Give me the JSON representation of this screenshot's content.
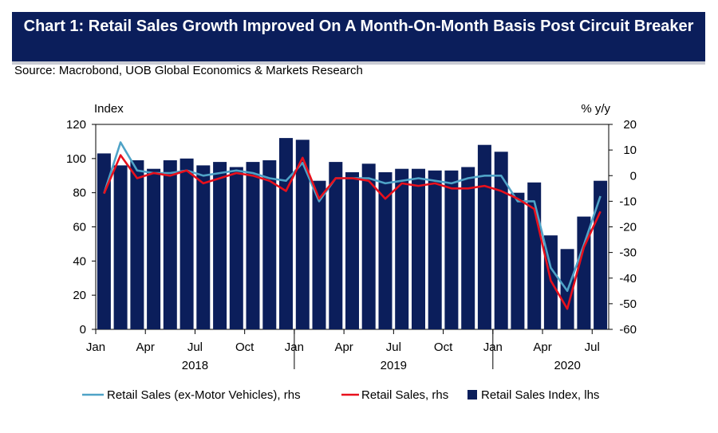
{
  "header": {
    "title": "Chart 1: Retail Sales Growth Improved On A Month-On-Month Basis Post Circuit Breaker",
    "source": "Source: Macrobond, UOB Global Economics & Markets Research"
  },
  "colors": {
    "bar": "#0b1e5b",
    "ex_motor_line": "#4fa3c7",
    "retail_line": "#e8101c",
    "title_bg": "#0b1e5b"
  },
  "chart_data": {
    "type": "bar+line",
    "title": "Chart 1: Retail Sales Growth Improved On A Month-On-Month Basis Post Circuit Breaker",
    "left_axis_label": "Index",
    "right_axis_label": "% y/y",
    "left_ylim": [
      0,
      120
    ],
    "right_ylim": [
      -60,
      20
    ],
    "left_ticks": [
      "0",
      "20",
      "40",
      "60",
      "80",
      "100",
      "120"
    ],
    "right_ticks": [
      "-60",
      "-50",
      "-40",
      "-30",
      "-20",
      "-10",
      "0",
      "10",
      "20"
    ],
    "x_month_labels": [
      {
        "index": 0,
        "label": "Jan"
      },
      {
        "index": 3,
        "label": "Apr"
      },
      {
        "index": 6,
        "label": "Jul"
      },
      {
        "index": 9,
        "label": "Oct"
      },
      {
        "index": 12,
        "label": "Jan"
      },
      {
        "index": 15,
        "label": "Apr"
      },
      {
        "index": 18,
        "label": "Jul"
      },
      {
        "index": 21,
        "label": "Oct"
      },
      {
        "index": 24,
        "label": "Jan"
      },
      {
        "index": 27,
        "label": "Apr"
      },
      {
        "index": 30,
        "label": "Jul"
      }
    ],
    "x_year_labels": [
      {
        "center_index": 5.5,
        "label": "2018"
      },
      {
        "center_index": 17.5,
        "label": "2019"
      },
      {
        "center_index": 28,
        "label": "2020"
      }
    ],
    "categories": [
      "2018-01",
      "2018-02",
      "2018-03",
      "2018-04",
      "2018-05",
      "2018-06",
      "2018-07",
      "2018-08",
      "2018-09",
      "2018-10",
      "2018-11",
      "2018-12",
      "2019-01",
      "2019-02",
      "2019-03",
      "2019-04",
      "2019-05",
      "2019-06",
      "2019-07",
      "2019-08",
      "2019-09",
      "2019-10",
      "2019-11",
      "2019-12",
      "2020-01",
      "2020-02",
      "2020-03",
      "2020-04",
      "2020-05",
      "2020-06",
      "2020-07"
    ],
    "series": [
      {
        "name": "Retail Sales Index, lhs",
        "axis": "left",
        "kind": "bar",
        "values": [
          103,
          96,
          99,
          94,
          99,
          100,
          96,
          98,
          95,
          98,
          99,
          112,
          111,
          87,
          98,
          92,
          97,
          92,
          94,
          94,
          93,
          93,
          95,
          108,
          104,
          80,
          86,
          55,
          47,
          66,
          87
        ]
      },
      {
        "name": "Retail Sales (ex-Motor Vehicles), rhs",
        "axis": "right",
        "kind": "line",
        "values": [
          -7,
          13,
          2,
          1,
          1,
          2,
          0,
          1,
          2,
          1,
          -1,
          -2,
          5,
          -10,
          -1,
          -1,
          -1,
          -3,
          -2,
          -1,
          -2,
          -3,
          -1,
          0,
          0,
          -10,
          -10,
          -36,
          -45,
          -27,
          -8
        ]
      },
      {
        "name": "Retail Sales, rhs",
        "axis": "right",
        "kind": "line",
        "values": [
          -7,
          8,
          -1,
          1,
          0,
          2,
          -3,
          -1,
          1,
          0,
          -2,
          -6,
          7,
          -9,
          -1,
          -1,
          -2,
          -9,
          -3,
          -4,
          -3,
          -5,
          -5,
          -4,
          -6,
          -9,
          -13,
          -41,
          -52,
          -28,
          -14
        ]
      }
    ],
    "legend": [
      {
        "label": "Retail Sales (ex-Motor Vehicles), rhs",
        "marker": "line",
        "color": "#4fa3c7"
      },
      {
        "label": "Retail Sales, rhs",
        "marker": "line",
        "color": "#e8101c"
      },
      {
        "label": "Retail Sales Index, lhs",
        "marker": "square",
        "color": "#0b1e5b"
      }
    ]
  }
}
